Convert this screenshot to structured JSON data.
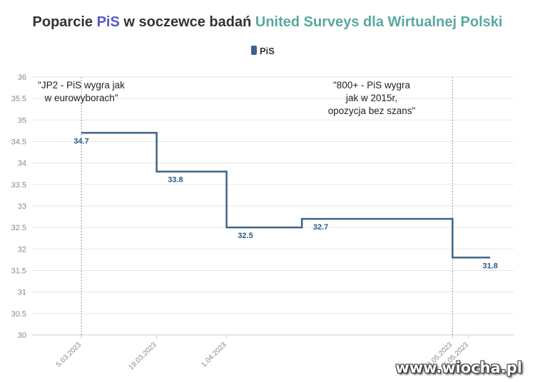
{
  "title": {
    "part1": "Poparcie ",
    "part2": "PiS",
    "part3": " w soczewce badań ",
    "part4": "United Surveys dla Wirtualnej Polski"
  },
  "colors": {
    "title_dark": "#333333",
    "pis_accent": "#5a55c8",
    "teal_accent": "#58a8a0",
    "series": "#3f6489",
    "grid": "#e6e6e6",
    "marker_line": "#999999"
  },
  "watermark": "www.wiocha.pl",
  "chart_data": {
    "type": "line",
    "step": true,
    "x": [
      "2023-03-05",
      "2023-03-12",
      "2023-03-19",
      "2023-03-26",
      "2023-04-01",
      "2023-04-08",
      "2023-04-15",
      "2023-04-22",
      "2023-05-13",
      "2023-05-20"
    ],
    "x_tick_labels": [
      "5.03.2023",
      "19.03.2023",
      "1.04.2023",
      "13.05.2023",
      "16.05.2023"
    ],
    "series": [
      {
        "name": "PiS",
        "values": [
          34.7,
          34.7,
          33.8,
          33.8,
          32.5,
          32.5,
          32.7,
          32.7,
          31.8,
          31.8
        ]
      }
    ],
    "data_labels": [
      {
        "value": "34.7"
      },
      {
        "value": "33.8"
      },
      {
        "value": "32.5"
      },
      {
        "value": "32.7"
      },
      {
        "value": "31.8"
      }
    ],
    "ylim": [
      30,
      36
    ],
    "y_ticks": [
      "30",
      "30.5",
      "31",
      "31.5",
      "32",
      "32.5",
      "33",
      "33.5",
      "34",
      "34.5",
      "35",
      "35.5",
      "36"
    ],
    "grid": true,
    "legend": "top-center",
    "annotations": [
      {
        "x": "5.03.2023",
        "lines": [
          "\"JP2 - PiS wygra jak",
          "w eurowyborach\""
        ]
      },
      {
        "x": "13.05.2023",
        "lines": [
          "\"800+ - PiS wygra",
          "jak w 2015r,",
          "opozycja bez szans\""
        ]
      }
    ],
    "xlabel": "",
    "ylabel": ""
  }
}
